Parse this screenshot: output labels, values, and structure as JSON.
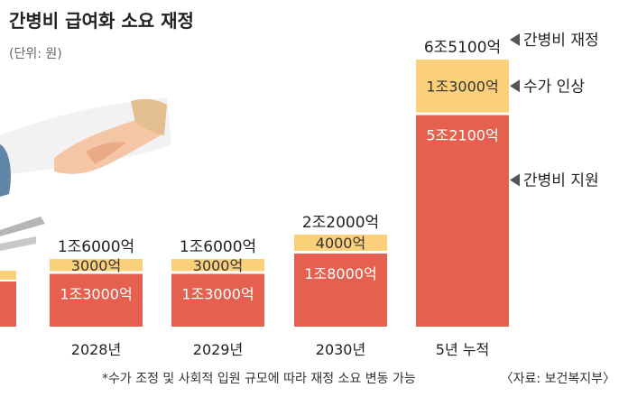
{
  "header": {
    "title": "간병비 급여화 소요 재정",
    "unit": "(단위: 원)"
  },
  "chart_data": {
    "type": "bar",
    "stacked": true,
    "unit": "억원",
    "categories": [
      "2028년",
      "2029년",
      "2030년",
      "5년 누적"
    ],
    "series": [
      {
        "name": "간병비 지원",
        "values": [
          13000,
          13000,
          18000,
          52100
        ],
        "labels": [
          "1조3000억",
          "1조3000억",
          "1조8000억",
          "5조2100억"
        ],
        "color": "#e5604e"
      },
      {
        "name": "수가 인상",
        "values": [
          3000,
          3000,
          4000,
          13000
        ],
        "labels": [
          "3000억",
          "3000억",
          "4000억",
          "1조3000억"
        ],
        "color": "#fbd07a"
      }
    ],
    "totals": {
      "values": [
        16000,
        16000,
        22000,
        65100
      ],
      "labels": [
        "1조6000억",
        "1조6000억",
        "2조2000억",
        "6조5100억"
      ]
    },
    "legend": [
      {
        "name": "간병비 재정",
        "target": "total"
      },
      {
        "name": "수가 인상",
        "target": "top"
      },
      {
        "name": "간병비 지원",
        "target": "bottom"
      }
    ],
    "legend_position": "right",
    "grid": false
  },
  "footnote": {
    "note": "*수가 조정 및 사회적 입원 규모에 따라 재정 소요 변동 가능",
    "source": "〈자료: 보건복지부〉"
  },
  "colors": {
    "support": "#e5604e",
    "fee": "#fbd07a",
    "text_on_red": "#ffffff",
    "text_on_yellow": "#333333",
    "legend_arrow": "#555555"
  }
}
